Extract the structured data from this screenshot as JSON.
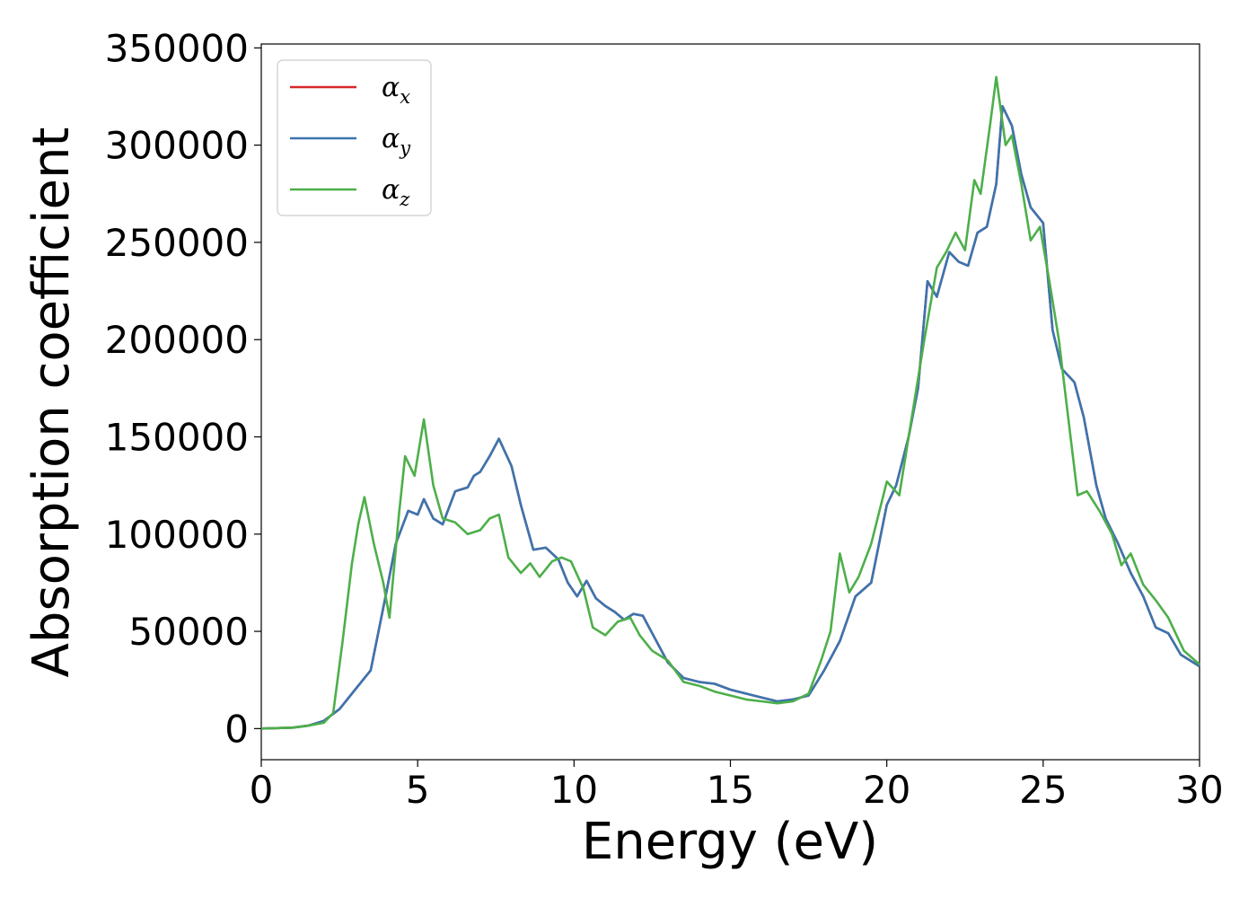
{
  "chart_data": {
    "type": "line",
    "title": "",
    "xlabel": "Energy (eV)",
    "ylabel": "Absorption coefficient",
    "xlim": [
      0,
      30
    ],
    "ylim": [
      -16000,
      352000
    ],
    "xticks": [
      0,
      5,
      10,
      15,
      20,
      25,
      30
    ],
    "yticks": [
      0,
      50000,
      100000,
      150000,
      200000,
      250000,
      300000,
      350000
    ],
    "grid": false,
    "legend_position": "top-left",
    "series": [
      {
        "name_base": "α",
        "name_sub": "x",
        "color": "#d62728",
        "x": [
          0,
          1,
          1.5,
          2,
          2.5,
          3,
          3.5,
          4,
          4.3,
          4.7,
          5,
          5.2,
          5.5,
          5.8,
          6.2,
          6.6,
          6.8,
          7.0,
          7.3,
          7.6,
          8.0,
          8.3,
          8.7,
          9.1,
          9.5,
          9.8,
          10.1,
          10.4,
          10.7,
          11.0,
          11.3,
          11.6,
          11.9,
          12.2,
          12.6,
          13.0,
          13.5,
          14.0,
          14.5,
          15.0,
          15.5,
          16.0,
          16.5,
          17.0,
          17.5,
          18.0,
          18.5,
          19.0,
          19.5,
          20.0,
          20.3,
          20.7,
          21.0,
          21.3,
          21.6,
          22.0,
          22.3,
          22.6,
          22.9,
          23.2,
          23.5,
          23.7,
          24.0,
          24.3,
          24.6,
          25.0,
          25.3,
          25.6,
          26.0,
          26.3,
          26.7,
          27.0,
          27.4,
          27.8,
          28.2,
          28.6,
          29.0,
          29.4,
          29.7,
          30.0
        ],
        "y": [
          0,
          500,
          1500,
          4000,
          10000,
          20000,
          30000,
          70000,
          95000,
          112000,
          110000,
          118000,
          108000,
          105000,
          122000,
          124000,
          130000,
          132000,
          140000,
          149000,
          135000,
          115000,
          92000,
          93000,
          87000,
          75000,
          68000,
          76000,
          67000,
          63000,
          60000,
          56000,
          59000,
          58000,
          46000,
          34000,
          26000,
          24000,
          23000,
          20000,
          18000,
          16000,
          14000,
          15000,
          17000,
          30000,
          45000,
          68000,
          75000,
          115000,
          125000,
          150000,
          175000,
          230000,
          222000,
          245000,
          240000,
          238000,
          255000,
          258000,
          280000,
          320000,
          310000,
          285000,
          268000,
          260000,
          205000,
          185000,
          178000,
          160000,
          125000,
          108000,
          95000,
          80000,
          68000,
          52000,
          49000,
          38000,
          35000,
          32000
        ]
      },
      {
        "name_base": "α",
        "name_sub": "y",
        "color": "#3a75b0",
        "x": [
          0,
          1,
          1.5,
          2,
          2.5,
          3,
          3.5,
          4,
          4.3,
          4.7,
          5,
          5.2,
          5.5,
          5.8,
          6.2,
          6.6,
          6.8,
          7.0,
          7.3,
          7.6,
          8.0,
          8.3,
          8.7,
          9.1,
          9.5,
          9.8,
          10.1,
          10.4,
          10.7,
          11.0,
          11.3,
          11.6,
          11.9,
          12.2,
          12.6,
          13.0,
          13.5,
          14.0,
          14.5,
          15.0,
          15.5,
          16.0,
          16.5,
          17.0,
          17.5,
          18.0,
          18.5,
          19.0,
          19.5,
          20.0,
          20.3,
          20.7,
          21.0,
          21.3,
          21.6,
          22.0,
          22.3,
          22.6,
          22.9,
          23.2,
          23.5,
          23.7,
          24.0,
          24.3,
          24.6,
          25.0,
          25.3,
          25.6,
          26.0,
          26.3,
          26.7,
          27.0,
          27.4,
          27.8,
          28.2,
          28.6,
          29.0,
          29.4,
          29.7,
          30.0
        ],
        "y": [
          0,
          500,
          1500,
          4000,
          10000,
          20000,
          30000,
          70000,
          95000,
          112000,
          110000,
          118000,
          108000,
          105000,
          122000,
          124000,
          130000,
          132000,
          140000,
          149000,
          135000,
          115000,
          92000,
          93000,
          87000,
          75000,
          68000,
          76000,
          67000,
          63000,
          60000,
          56000,
          59000,
          58000,
          46000,
          34000,
          26000,
          24000,
          23000,
          20000,
          18000,
          16000,
          14000,
          15000,
          17000,
          30000,
          45000,
          68000,
          75000,
          115000,
          125000,
          150000,
          175000,
          230000,
          222000,
          245000,
          240000,
          238000,
          255000,
          258000,
          280000,
          320000,
          310000,
          285000,
          268000,
          260000,
          205000,
          185000,
          178000,
          160000,
          125000,
          108000,
          95000,
          80000,
          68000,
          52000,
          49000,
          38000,
          35000,
          32000
        ]
      },
      {
        "name_base": "α",
        "name_sub": "z",
        "color": "#4daf4a",
        "x": [
          0,
          1,
          1.5,
          2,
          2.3,
          2.6,
          2.9,
          3.1,
          3.3,
          3.6,
          3.9,
          4.1,
          4.4,
          4.6,
          4.9,
          5.2,
          5.5,
          5.8,
          6.2,
          6.6,
          7.0,
          7.3,
          7.6,
          7.9,
          8.3,
          8.6,
          8.9,
          9.3,
          9.6,
          9.9,
          10.3,
          10.6,
          11.0,
          11.4,
          11.8,
          12.1,
          12.5,
          13.0,
          13.5,
          14.0,
          14.5,
          15.0,
          15.5,
          16.0,
          16.5,
          17.0,
          17.5,
          17.9,
          18.2,
          18.5,
          18.8,
          19.1,
          19.5,
          20.0,
          20.4,
          20.8,
          21.2,
          21.6,
          21.9,
          22.2,
          22.5,
          22.8,
          23.0,
          23.3,
          23.5,
          23.8,
          24.0,
          24.3,
          24.6,
          24.9,
          25.2,
          25.5,
          25.8,
          26.1,
          26.4,
          26.8,
          27.2,
          27.5,
          27.8,
          28.2,
          28.6,
          29.0,
          29.5,
          30.0
        ],
        "y": [
          0,
          500,
          1500,
          3000,
          8000,
          45000,
          85000,
          105000,
          119000,
          95000,
          75000,
          57000,
          110000,
          140000,
          130000,
          159000,
          125000,
          108000,
          106000,
          100000,
          102000,
          108000,
          110000,
          88000,
          80000,
          85000,
          78000,
          86000,
          88000,
          86000,
          72000,
          52000,
          48000,
          55000,
          57000,
          48000,
          40000,
          35000,
          24000,
          22000,
          19000,
          17000,
          15000,
          14000,
          13000,
          14000,
          18000,
          35000,
          50000,
          90000,
          70000,
          78000,
          95000,
          127000,
          120000,
          160000,
          200000,
          237000,
          245000,
          255000,
          246000,
          282000,
          275000,
          310000,
          335000,
          300000,
          305000,
          280000,
          251000,
          258000,
          230000,
          200000,
          160000,
          120000,
          122000,
          112000,
          100000,
          84000,
          90000,
          74000,
          66000,
          57000,
          40000,
          33000
        ]
      }
    ]
  }
}
